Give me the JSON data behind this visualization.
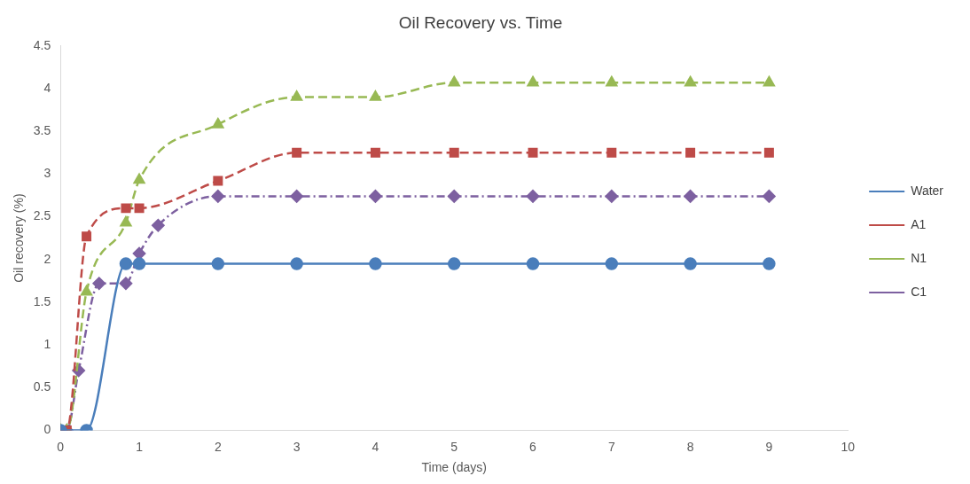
{
  "chart_data": {
    "type": "line",
    "title": "Oil Recovery vs. Time",
    "xlabel": "Time (days)",
    "ylabel": "Oil recovery (%)",
    "xlim": [
      0,
      10
    ],
    "xticks": [
      0,
      1,
      2,
      3,
      4,
      5,
      6,
      7,
      8,
      9,
      10
    ],
    "ylim": [
      0,
      4.5
    ],
    "yticks": [
      0,
      0.5,
      1,
      1.5,
      2,
      2.5,
      3,
      3.5,
      4,
      4.5
    ],
    "grid": false,
    "legend": "right",
    "series": [
      {
        "name": "Water",
        "color": "#4a7ebb",
        "marker": "circle",
        "line_style": "solid",
        "x": [
          0,
          0.33,
          0.83,
          1,
          2,
          3,
          4,
          5,
          6,
          7,
          8,
          9
        ],
        "values": [
          0,
          0,
          1.95,
          1.95,
          1.95,
          1.95,
          1.95,
          1.95,
          1.95,
          1.95,
          1.95,
          1.95
        ]
      },
      {
        "name": "A1",
        "color": "#be4b48",
        "marker": "square",
        "line_style": "dashed",
        "x": [
          0,
          0.08,
          0.33,
          0.83,
          1,
          2,
          3,
          4,
          5,
          6,
          7,
          8,
          9
        ],
        "values": [
          0,
          0,
          2.27,
          2.6,
          2.6,
          2.92,
          3.25,
          3.25,
          3.25,
          3.25,
          3.25,
          3.25,
          3.25
        ]
      },
      {
        "name": "N1",
        "color": "#98b954",
        "marker": "triangle",
        "line_style": "dashed",
        "x": [
          0,
          0.08,
          0.33,
          0.83,
          1,
          2,
          3,
          4,
          5,
          6,
          7,
          8,
          9
        ],
        "values": [
          0,
          0,
          1.62,
          2.43,
          2.93,
          3.58,
          3.9,
          3.9,
          4.07,
          4.07,
          4.07,
          4.07,
          4.07
        ]
      },
      {
        "name": "C1",
        "color": "#7d60a0",
        "marker": "diamond",
        "line_style": "dotted",
        "x": [
          0,
          0.08,
          0.23,
          0.49,
          0.83,
          1,
          1.24,
          2,
          3,
          4,
          5,
          6,
          7,
          8,
          9
        ],
        "values": [
          0,
          0,
          0.7,
          1.72,
          1.72,
          2.07,
          2.4,
          2.74,
          2.74,
          2.74,
          2.74,
          2.74,
          2.74,
          2.74,
          2.74
        ]
      }
    ]
  }
}
